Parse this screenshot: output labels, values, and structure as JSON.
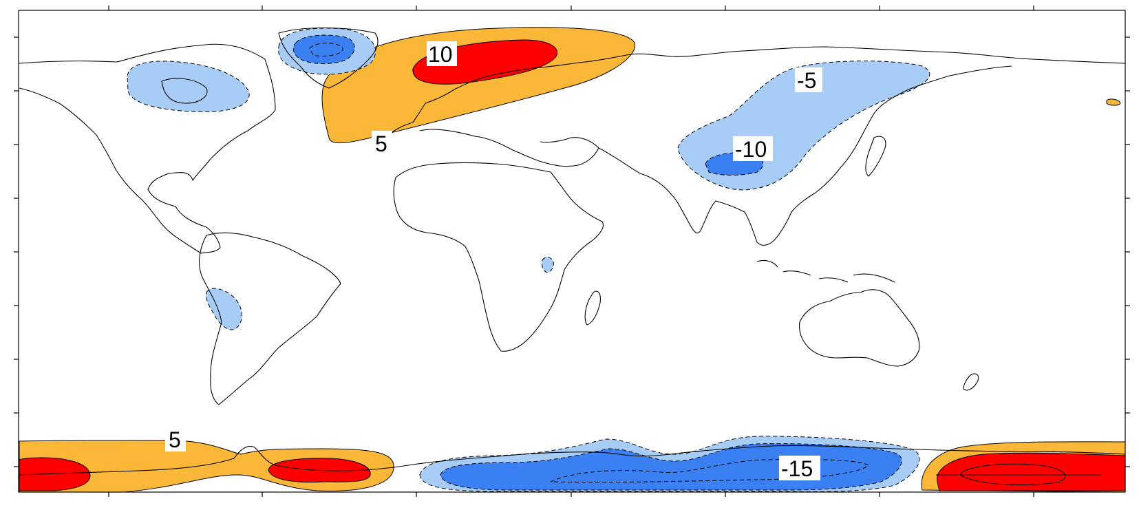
{
  "colors": {
    "positive_5": "#FBB838",
    "positive_10": "#FF0000",
    "negative_5": "#A7CCF5",
    "negative_10": "#3A80F2",
    "coastline": "#000000",
    "background": "#FFFFFF"
  },
  "contour_levels": [
    -15,
    -10,
    -5,
    5,
    10
  ],
  "labels": {
    "europe_10": "10",
    "europe_5": "5",
    "asia_neg5": "-5",
    "asia_neg10": "-10",
    "south_5": "5",
    "south_neg15": "-15"
  }
}
